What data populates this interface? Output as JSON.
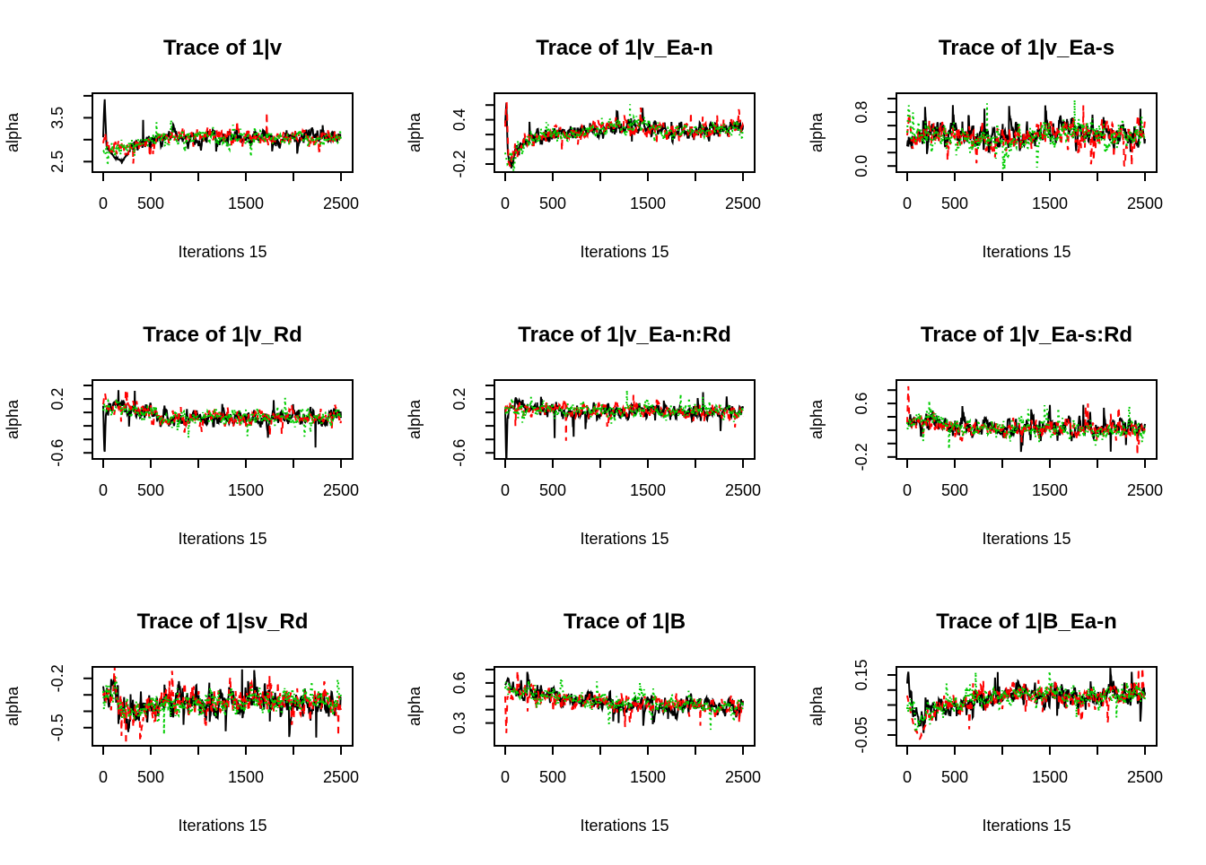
{
  "figure": {
    "background": "#ffffff",
    "text_color": "#000000",
    "chains": {
      "count": 3,
      "colors": [
        "#000000",
        "#ff0000",
        "#00cd00"
      ],
      "line_types": [
        "solid",
        "dashed",
        "dotted"
      ]
    }
  },
  "chart_data": [
    {
      "type": "line",
      "title": "Trace of 1|v",
      "xlabel": "Iterations 15",
      "ylabel": "alpha",
      "x_range": [
        0,
        2500
      ],
      "x_ticks": [
        0,
        500,
        1000,
        1500,
        2000,
        2500
      ],
      "x_labels": [
        [
          0,
          "0"
        ],
        [
          500,
          "500"
        ],
        [
          1500,
          "1500"
        ],
        [
          2500,
          "2500"
        ]
      ],
      "y_window": [
        2.26,
        4.06
      ],
      "y_ticks": [
        2.5,
        3.0,
        3.5,
        4.0
      ],
      "y_labels": [
        [
          2.5,
          "2.5"
        ],
        [
          3.5,
          "3.5"
        ]
      ],
      "mean_path": [
        [
          0,
          3.0
        ],
        [
          60,
          2.8
        ],
        [
          200,
          2.78
        ],
        [
          400,
          2.92
        ],
        [
          650,
          3.03
        ],
        [
          1100,
          3.06
        ],
        [
          1700,
          3.02
        ],
        [
          2100,
          3.06
        ],
        [
          2500,
          3.02
        ]
      ],
      "noise_halfwidth": 0.16,
      "init": {
        "0": [
          [
            0,
            3.05
          ],
          [
            15,
            3.98
          ],
          [
            35,
            2.85
          ],
          [
            120,
            2.6
          ],
          [
            200,
            2.5
          ],
          [
            280,
            2.75
          ]
        ],
        "1": [
          [
            0,
            2.9
          ],
          [
            20,
            3.15
          ],
          [
            40,
            2.85
          ]
        ],
        "2": [
          [
            0,
            2.75
          ],
          [
            25,
            2.7
          ]
        ]
      },
      "events": [
        [
          1,
          1720,
          3.62
        ],
        [
          0,
          420,
          3.45
        ],
        [
          2,
          560,
          3.4
        ]
      ]
    },
    {
      "type": "line",
      "title": "Trace of 1|v_Ea-n",
      "xlabel": "Iterations 15",
      "ylabel": "alpha",
      "x_range": [
        0,
        2500
      ],
      "x_ticks": [
        0,
        500,
        1000,
        1500,
        2000,
        2500
      ],
      "x_labels": [
        [
          0,
          "0"
        ],
        [
          500,
          "500"
        ],
        [
          1500,
          "1500"
        ],
        [
          2500,
          "2500"
        ]
      ],
      "y_window": [
        -0.31,
        0.76
      ],
      "y_ticks": [
        -0.2,
        0.0,
        0.2,
        0.4,
        0.6
      ],
      "y_labels": [
        [
          -0.2,
          "-0.2"
        ],
        [
          0.4,
          "0.4"
        ]
      ],
      "mean_path": [
        [
          0,
          0.0
        ],
        [
          60,
          -0.12
        ],
        [
          120,
          0.0
        ],
        [
          250,
          0.12
        ],
        [
          450,
          0.18
        ],
        [
          700,
          0.2
        ],
        [
          1000,
          0.27
        ],
        [
          1300,
          0.3
        ],
        [
          1700,
          0.27
        ],
        [
          2100,
          0.26
        ],
        [
          2500,
          0.27
        ]
      ],
      "noise_halfwidth": 0.105,
      "init": {
        "0": [
          [
            0,
            0.35
          ],
          [
            12,
            0.63
          ],
          [
            28,
            -0.05
          ],
          [
            45,
            -0.2
          ]
        ],
        "1": [
          [
            0,
            0.3
          ],
          [
            15,
            0.68
          ],
          [
            35,
            -0.18
          ],
          [
            55,
            -0.25
          ]
        ],
        "2": [
          [
            0,
            -0.05
          ],
          [
            25,
            -0.2
          ],
          [
            50,
            -0.12
          ]
        ]
      },
      "events": [
        [
          2,
          1310,
          0.61
        ],
        [
          0,
          1180,
          0.52
        ],
        [
          1,
          1950,
          0.5
        ]
      ]
    },
    {
      "type": "line",
      "title": "Trace of 1|v_Ea-s",
      "xlabel": "Iterations 15",
      "ylabel": "alpha",
      "x_range": [
        0,
        2500
      ],
      "x_ticks": [
        0,
        500,
        1000,
        1500,
        2000,
        2500
      ],
      "x_labels": [
        [
          0,
          "0"
        ],
        [
          500,
          "500"
        ],
        [
          1500,
          "1500"
        ],
        [
          2500,
          "2500"
        ]
      ],
      "y_window": [
        -0.09,
        1.08
      ],
      "y_ticks": [
        0.0,
        0.2,
        0.4,
        0.6,
        0.8,
        1.0
      ],
      "y_labels": [
        [
          0.0,
          "0.0"
        ],
        [
          0.8,
          "0.8"
        ]
      ],
      "mean_path": [
        [
          0,
          0.35
        ],
        [
          120,
          0.45
        ],
        [
          400,
          0.44
        ],
        [
          700,
          0.42
        ],
        [
          1000,
          0.42
        ],
        [
          1300,
          0.43
        ],
        [
          1600,
          0.5
        ],
        [
          1900,
          0.5
        ],
        [
          2200,
          0.45
        ],
        [
          2500,
          0.5
        ]
      ],
      "noise_halfwidth": 0.18,
      "init": {
        "0": [
          [
            0,
            0.3
          ]
        ],
        "1": [
          [
            0,
            0.45
          ],
          [
            20,
            0.78
          ],
          [
            40,
            0.5
          ]
        ],
        "2": [
          [
            0,
            0.5
          ],
          [
            15,
            0.92
          ],
          [
            35,
            0.6
          ]
        ]
      },
      "events": [
        [
          2,
          840,
          0.93
        ],
        [
          0,
          810,
          0.85
        ],
        [
          2,
          1760,
          0.98
        ],
        [
          1,
          1850,
          0.9
        ],
        [
          0,
          2450,
          0.85
        ]
      ]
    },
    {
      "type": "line",
      "title": "Trace of 1|v_Rd",
      "xlabel": "Iterations 15",
      "ylabel": "alpha",
      "x_range": [
        0,
        2500
      ],
      "x_ticks": [
        0,
        500,
        1000,
        1500,
        2000,
        2500
      ],
      "x_labels": [
        [
          0,
          "0"
        ],
        [
          500,
          "500"
        ],
        [
          1500,
          "1500"
        ],
        [
          2500,
          "2500"
        ]
      ],
      "y_window": [
        -0.69,
        0.48
      ],
      "y_ticks": [
        -0.6,
        -0.4,
        -0.2,
        0.0,
        0.2,
        0.4
      ],
      "y_labels": [
        [
          -0.6,
          "-0.6"
        ],
        [
          0.2,
          "0.2"
        ]
      ],
      "mean_path": [
        [
          0,
          0.06
        ],
        [
          150,
          0.1
        ],
        [
          350,
          0.06
        ],
        [
          550,
          -0.03
        ],
        [
          750,
          -0.09
        ],
        [
          1000,
          -0.08
        ],
        [
          1300,
          -0.06
        ],
        [
          1600,
          -0.08
        ],
        [
          1900,
          -0.07
        ],
        [
          2200,
          -0.08
        ],
        [
          2500,
          -0.03
        ]
      ],
      "noise_halfwidth": 0.115,
      "init": {
        "0": [
          [
            0,
            0.1
          ],
          [
            14,
            -0.67
          ],
          [
            30,
            0.05
          ]
        ],
        "1": [
          [
            0,
            0.12
          ],
          [
            18,
            0.3
          ],
          [
            40,
            0.08
          ]
        ],
        "2": [
          [
            0,
            0.05
          ]
        ]
      },
      "events": [
        [
          0,
          2230,
          -0.52
        ],
        [
          0,
          330,
          0.32
        ],
        [
          1,
          250,
          0.3
        ],
        [
          0,
          160,
          0.33
        ]
      ]
    },
    {
      "type": "line",
      "title": "Trace of 1|v_Ea-n:Rd",
      "xlabel": "Iterations 15",
      "ylabel": "alpha",
      "x_range": [
        0,
        2500
      ],
      "x_ticks": [
        0,
        500,
        1000,
        1500,
        2000,
        2500
      ],
      "x_labels": [
        [
          0,
          "0"
        ],
        [
          500,
          "500"
        ],
        [
          1500,
          "1500"
        ],
        [
          2500,
          "2500"
        ]
      ],
      "y_window": [
        -0.69,
        0.48
      ],
      "y_ticks": [
        -0.6,
        -0.4,
        -0.2,
        0.0,
        0.2,
        0.4
      ],
      "y_labels": [
        [
          -0.6,
          "-0.6"
        ],
        [
          0.2,
          "0.2"
        ]
      ],
      "mean_path": [
        [
          0,
          0.08
        ],
        [
          300,
          0.06
        ],
        [
          600,
          0.01
        ],
        [
          900,
          0.03
        ],
        [
          1200,
          0.02
        ],
        [
          1500,
          0.05
        ],
        [
          1800,
          0.0
        ],
        [
          2100,
          -0.01
        ],
        [
          2500,
          0.01
        ]
      ],
      "noise_halfwidth": 0.105,
      "init": {
        "0": [
          [
            0,
            0.05
          ],
          [
            12,
            -0.78
          ],
          [
            26,
            0.02
          ]
        ]
      },
      "events": [
        [
          0,
          520,
          -0.38
        ],
        [
          1,
          640,
          -0.42
        ],
        [
          0,
          720,
          -0.36
        ],
        [
          2,
          1280,
          0.33
        ],
        [
          0,
          2080,
          0.3
        ]
      ]
    },
    {
      "type": "line",
      "title": "Trace of 1|v_Ea-s:Rd",
      "xlabel": "Iterations 15",
      "ylabel": "alpha",
      "x_range": [
        0,
        2500
      ],
      "x_ticks": [
        0,
        500,
        1000,
        1500,
        2000,
        2500
      ],
      "x_labels": [
        [
          0,
          "0"
        ],
        [
          500,
          "500"
        ],
        [
          1500,
          "1500"
        ],
        [
          2500,
          "2500"
        ]
      ],
      "y_window": [
        -0.23,
        0.95
      ],
      "y_ticks": [
        -0.2,
        0.0,
        0.2,
        0.4,
        0.6,
        0.8
      ],
      "y_labels": [
        [
          -0.2,
          "-0.2"
        ],
        [
          0.6,
          "0.6"
        ]
      ],
      "mean_path": [
        [
          0,
          0.3
        ],
        [
          250,
          0.33
        ],
        [
          500,
          0.24
        ],
        [
          800,
          0.22
        ],
        [
          1100,
          0.23
        ],
        [
          1400,
          0.22
        ],
        [
          1700,
          0.24
        ],
        [
          2000,
          0.18
        ],
        [
          2300,
          0.2
        ],
        [
          2500,
          0.21
        ]
      ],
      "noise_halfwidth": 0.135,
      "init": {
        "1": [
          [
            0,
            0.3
          ],
          [
            12,
            0.85
          ],
          [
            24,
            0.32
          ]
        ]
      },
      "events": [
        [
          1,
          2420,
          -0.17
        ],
        [
          0,
          2140,
          -0.12
        ],
        [
          1,
          1900,
          0.6
        ],
        [
          0,
          1850,
          0.58
        ]
      ]
    },
    {
      "type": "line",
      "title": "Trace of 1|sv_Rd",
      "xlabel": "Iterations 15",
      "ylabel": "alpha",
      "x_range": [
        0,
        2500
      ],
      "x_ticks": [
        0,
        500,
        1000,
        1500,
        2000,
        2500
      ],
      "x_labels": [
        [
          0,
          "0"
        ],
        [
          500,
          "500"
        ],
        [
          1500,
          "1500"
        ],
        [
          2500,
          "2500"
        ]
      ],
      "y_window": [
        -0.61,
        -0.13
      ],
      "y_ticks": [
        -0.5,
        -0.4,
        -0.3,
        -0.2
      ],
      "y_labels": [
        [
          -0.5,
          "-0.5"
        ],
        [
          -0.2,
          "-0.2"
        ]
      ],
      "mean_path": [
        [
          0,
          -0.28
        ],
        [
          120,
          -0.27
        ],
        [
          220,
          -0.39
        ],
        [
          350,
          -0.41
        ],
        [
          550,
          -0.36
        ],
        [
          850,
          -0.34
        ],
        [
          1200,
          -0.35
        ],
        [
          1600,
          -0.33
        ],
        [
          2000,
          -0.35
        ],
        [
          2300,
          -0.33
        ],
        [
          2500,
          -0.35
        ]
      ],
      "noise_halfwidth": 0.08,
      "init": {
        "0": [
          [
            0,
            -0.24
          ],
          [
            15,
            -0.33
          ]
        ],
        "1": [
          [
            0,
            -0.3
          ]
        ],
        "2": [
          [
            0,
            -0.28
          ]
        ]
      },
      "events": [
        [
          0,
          1460,
          -0.145
        ],
        [
          1,
          240,
          -0.6
        ],
        [
          1,
          190,
          -0.55
        ],
        [
          0,
          2240,
          -0.56
        ],
        [
          1,
          2470,
          -0.55
        ],
        [
          2,
          640,
          -0.54
        ]
      ]
    },
    {
      "type": "line",
      "title": "Trace of 1|B",
      "xlabel": "Iterations 15",
      "ylabel": "alpha",
      "x_range": [
        0,
        2500
      ],
      "x_ticks": [
        0,
        500,
        1000,
        1500,
        2000,
        2500
      ],
      "x_labels": [
        [
          0,
          "0"
        ],
        [
          500,
          "500"
        ],
        [
          1500,
          "1500"
        ],
        [
          2500,
          "2500"
        ]
      ],
      "y_window": [
        0.13,
        0.72
      ],
      "y_ticks": [
        0.3,
        0.4,
        0.5,
        0.6,
        0.7
      ],
      "y_labels": [
        [
          0.3,
          "0.3"
        ],
        [
          0.6,
          "0.6"
        ]
      ],
      "mean_path": [
        [
          0,
          0.54
        ],
        [
          250,
          0.52
        ],
        [
          550,
          0.5
        ],
        [
          850,
          0.47
        ],
        [
          1150,
          0.45
        ],
        [
          1500,
          0.44
        ],
        [
          1900,
          0.43
        ],
        [
          2250,
          0.42
        ],
        [
          2500,
          0.43
        ]
      ],
      "noise_halfwidth": 0.062,
      "init": {
        "0": [
          [
            0,
            0.58
          ],
          [
            30,
            0.64
          ],
          [
            60,
            0.55
          ]
        ],
        "1": [
          [
            0,
            0.5
          ],
          [
            12,
            0.22
          ],
          [
            25,
            0.52
          ]
        ]
      },
      "events": [
        [
          1,
          1260,
          0.27
        ],
        [
          2,
          2160,
          0.25
        ],
        [
          1,
          2050,
          0.28
        ],
        [
          0,
          1190,
          0.3
        ]
      ]
    },
    {
      "type": "line",
      "title": "Trace of 1|B_Ea-n",
      "xlabel": "Iterations 15",
      "ylabel": "alpha",
      "x_range": [
        0,
        2500
      ],
      "x_ticks": [
        0,
        500,
        1000,
        1500,
        2000,
        2500
      ],
      "x_labels": [
        [
          0,
          "0"
        ],
        [
          500,
          "500"
        ],
        [
          1500,
          "1500"
        ],
        [
          2500,
          "2500"
        ]
      ],
      "y_window": [
        -0.086,
        0.177
      ],
      "y_ticks": [
        -0.05,
        0.0,
        0.05,
        0.1,
        0.15
      ],
      "y_labels": [
        [
          -0.05,
          "-0.05"
        ],
        [
          0.15,
          "0.15"
        ]
      ],
      "mean_path": [
        [
          0,
          0.09
        ],
        [
          70,
          0.03
        ],
        [
          140,
          -0.01
        ],
        [
          220,
          0.02
        ],
        [
          400,
          0.05
        ],
        [
          700,
          0.065
        ],
        [
          1000,
          0.08
        ],
        [
          1400,
          0.085
        ],
        [
          1800,
          0.08
        ],
        [
          2200,
          0.085
        ],
        [
          2500,
          0.08
        ]
      ],
      "noise_halfwidth": 0.036,
      "init": {
        "0": [
          [
            0,
            0.12
          ],
          [
            12,
            0.165
          ],
          [
            30,
            0.06
          ]
        ],
        "1": [
          [
            0,
            0.08
          ],
          [
            70,
            -0.02
          ],
          [
            130,
            -0.063
          ],
          [
            190,
            -0.02
          ]
        ],
        "2": [
          [
            0,
            0.04
          ]
        ]
      },
      "events": [
        [
          1,
          2430,
          0.17
        ],
        [
          0,
          950,
          0.16
        ]
      ]
    }
  ]
}
